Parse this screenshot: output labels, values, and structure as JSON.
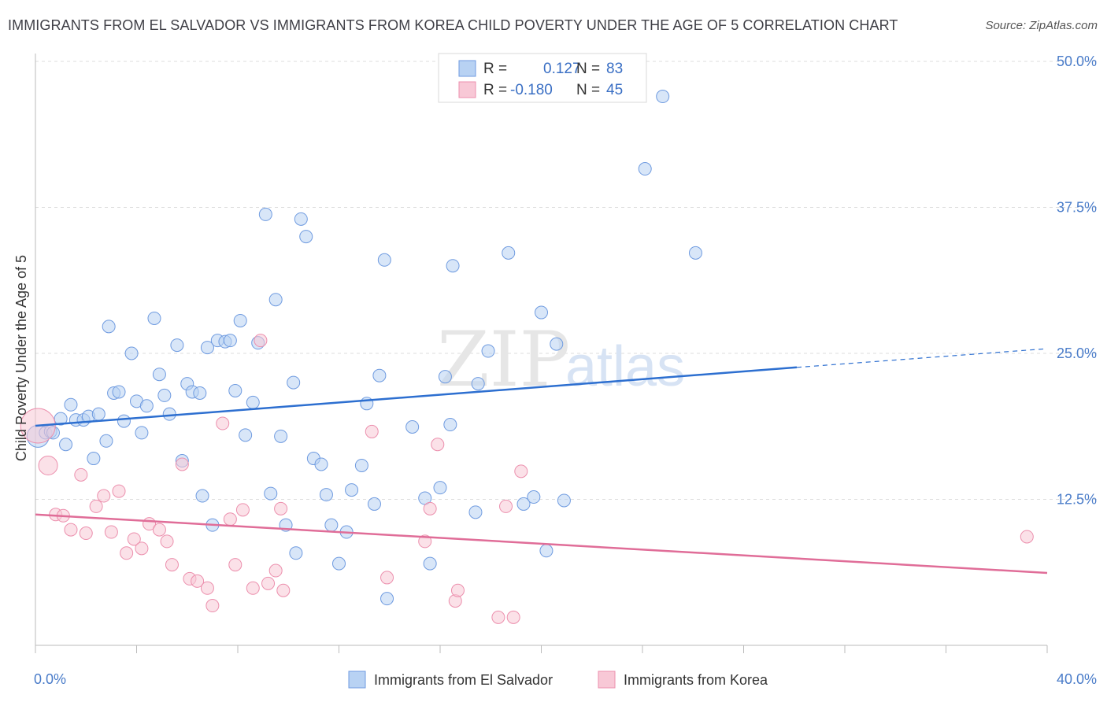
{
  "title": "IMMIGRANTS FROM EL SALVADOR VS IMMIGRANTS FROM KOREA CHILD POVERTY UNDER THE AGE OF 5 CORRELATION CHART",
  "source": "Source: ZipAtlas.com",
  "watermark": {
    "zip": "ZIP",
    "atlas": "atlas"
  },
  "colors": {
    "blue_fill": "#b8d2f3",
    "blue_stroke": "#6f9be0",
    "blue_line": "#2d6fd0",
    "pink_fill": "#f8c8d6",
    "pink_stroke": "#ec8fad",
    "pink_line": "#e06d98",
    "tick_label": "#4a7cc9",
    "grid": "#dddddd"
  },
  "legend": {
    "rows": [
      {
        "r_label": "R =",
        "r_value": "0.127",
        "n_label": "N =",
        "n_value": "83",
        "color": "blue"
      },
      {
        "r_label": "R =",
        "r_value": "-0.180",
        "n_label": "N =",
        "n_value": "45",
        "color": "pink"
      }
    ]
  },
  "chart_data": {
    "type": "scatter",
    "title": "IMMIGRANTS FROM EL SALVADOR VS IMMIGRANTS FROM KOREA CHILD POVERTY UNDER THE AGE OF 5 CORRELATION CHART",
    "xlabel": "",
    "ylabel": "Child Poverty Under the Age of 5",
    "xlim": [
      0,
      40
    ],
    "ylim": [
      0,
      50
    ],
    "x_tick_labels": [
      "0.0%",
      "40.0%"
    ],
    "y_ticks": [
      12.5,
      25.0,
      37.5,
      50.0
    ],
    "y_tick_labels": [
      "12.5%",
      "25.0%",
      "37.5%",
      "50.0%"
    ],
    "grid": true,
    "legend_position": "top-center",
    "series": [
      {
        "name": "Immigrants from El Salvador",
        "color": "blue",
        "r": 0.127,
        "n": 83,
        "trend": {
          "x": [
            0,
            30.1
          ],
          "y": [
            18.8,
            23.8
          ],
          "dashed_to": [
            40,
            25.4
          ]
        },
        "points": [
          [
            0.1,
            17.9,
            14
          ],
          [
            0.4,
            18.2,
            8
          ],
          [
            0.6,
            18.3,
            8
          ],
          [
            0.7,
            18.2,
            8
          ],
          [
            1.0,
            19.4,
            8
          ],
          [
            1.2,
            17.2,
            8
          ],
          [
            1.4,
            20.6,
            8
          ],
          [
            1.6,
            19.3,
            8
          ],
          [
            1.9,
            19.3,
            8
          ],
          [
            2.1,
            19.6,
            8
          ],
          [
            2.3,
            16.0,
            8
          ],
          [
            2.5,
            19.8,
            8
          ],
          [
            2.8,
            17.5,
            8
          ],
          [
            2.9,
            27.3,
            8
          ],
          [
            3.1,
            21.6,
            8
          ],
          [
            3.3,
            21.7,
            8
          ],
          [
            3.5,
            19.2,
            8
          ],
          [
            3.8,
            25.0,
            8
          ],
          [
            4.0,
            20.9,
            8
          ],
          [
            4.2,
            18.2,
            8
          ],
          [
            4.4,
            20.5,
            8
          ],
          [
            4.7,
            28.0,
            8
          ],
          [
            4.9,
            23.2,
            8
          ],
          [
            5.1,
            21.4,
            8
          ],
          [
            5.3,
            19.8,
            8
          ],
          [
            5.6,
            25.7,
            8
          ],
          [
            5.8,
            15.8,
            8
          ],
          [
            6.0,
            22.4,
            8
          ],
          [
            6.2,
            21.7,
            8
          ],
          [
            6.5,
            21.6,
            8
          ],
          [
            6.6,
            12.8,
            8
          ],
          [
            6.8,
            25.5,
            8
          ],
          [
            7.0,
            10.3,
            8
          ],
          [
            7.2,
            26.1,
            8
          ],
          [
            7.5,
            26.0,
            8
          ],
          [
            7.7,
            26.1,
            8
          ],
          [
            7.9,
            21.8,
            8
          ],
          [
            8.1,
            27.8,
            8
          ],
          [
            8.3,
            18.0,
            8
          ],
          [
            8.6,
            20.8,
            8
          ],
          [
            8.8,
            25.9,
            8
          ],
          [
            9.1,
            36.9,
            8
          ],
          [
            9.3,
            13.0,
            8
          ],
          [
            9.5,
            29.6,
            8
          ],
          [
            9.7,
            17.9,
            8
          ],
          [
            9.9,
            10.3,
            8
          ],
          [
            10.2,
            22.5,
            8
          ],
          [
            10.3,
            7.9,
            8
          ],
          [
            10.5,
            36.5,
            8
          ],
          [
            10.7,
            35.0,
            8
          ],
          [
            11.0,
            16.0,
            8
          ],
          [
            11.3,
            15.5,
            8
          ],
          [
            11.5,
            12.9,
            8
          ],
          [
            11.7,
            10.3,
            8
          ],
          [
            12.0,
            7.0,
            8
          ],
          [
            12.3,
            9.7,
            8
          ],
          [
            12.5,
            13.3,
            8
          ],
          [
            12.9,
            15.4,
            8
          ],
          [
            13.1,
            20.7,
            8
          ],
          [
            13.4,
            12.1,
            8
          ],
          [
            13.6,
            23.1,
            8
          ],
          [
            13.8,
            33.0,
            8
          ],
          [
            13.9,
            4.0,
            8
          ],
          [
            14.9,
            18.7,
            8
          ],
          [
            15.4,
            12.6,
            8
          ],
          [
            15.6,
            7.0,
            8
          ],
          [
            16.0,
            13.5,
            8
          ],
          [
            16.2,
            23.0,
            8
          ],
          [
            16.4,
            18.9,
            8
          ],
          [
            16.5,
            32.5,
            8
          ],
          [
            17.4,
            11.4,
            8
          ],
          [
            17.5,
            22.4,
            8
          ],
          [
            17.9,
            25.2,
            8
          ],
          [
            18.7,
            33.6,
            8
          ],
          [
            19.3,
            12.1,
            8
          ],
          [
            19.7,
            12.7,
            8
          ],
          [
            20.0,
            28.5,
            8
          ],
          [
            20.2,
            8.1,
            8
          ],
          [
            20.6,
            25.8,
            8
          ],
          [
            20.9,
            12.4,
            8
          ],
          [
            24.1,
            40.8,
            8
          ],
          [
            24.8,
            47.0,
            8
          ],
          [
            26.1,
            33.6,
            8
          ]
        ]
      },
      {
        "name": "Immigrants from Korea",
        "color": "pink",
        "r": -0.18,
        "n": 45,
        "trend": {
          "x": [
            0,
            40
          ],
          "y": [
            11.2,
            6.2
          ]
        },
        "points": [
          [
            0.1,
            18.8,
            22
          ],
          [
            0.5,
            15.4,
            12
          ],
          [
            0.8,
            11.2,
            8
          ],
          [
            1.1,
            11.1,
            8
          ],
          [
            1.4,
            9.9,
            8
          ],
          [
            1.8,
            14.6,
            8
          ],
          [
            2.0,
            9.6,
            8
          ],
          [
            2.4,
            11.9,
            8
          ],
          [
            2.7,
            12.8,
            8
          ],
          [
            3.0,
            9.7,
            8
          ],
          [
            3.3,
            13.2,
            8
          ],
          [
            3.6,
            7.9,
            8
          ],
          [
            3.9,
            9.1,
            8
          ],
          [
            4.2,
            8.3,
            8
          ],
          [
            4.5,
            10.4,
            8
          ],
          [
            4.9,
            9.9,
            8
          ],
          [
            5.2,
            8.9,
            8
          ],
          [
            5.4,
            6.9,
            8
          ],
          [
            5.8,
            15.5,
            8
          ],
          [
            6.1,
            5.7,
            8
          ],
          [
            6.4,
            5.5,
            8
          ],
          [
            6.8,
            4.9,
            8
          ],
          [
            7.0,
            3.4,
            8
          ],
          [
            7.4,
            19.0,
            8
          ],
          [
            7.7,
            10.8,
            8
          ],
          [
            7.9,
            6.9,
            8
          ],
          [
            8.2,
            11.6,
            8
          ],
          [
            8.6,
            4.9,
            8
          ],
          [
            8.9,
            26.1,
            8
          ],
          [
            9.2,
            5.3,
            8
          ],
          [
            9.5,
            6.4,
            8
          ],
          [
            9.7,
            11.7,
            8
          ],
          [
            9.8,
            4.7,
            8
          ],
          [
            13.3,
            18.3,
            8
          ],
          [
            13.9,
            5.8,
            8
          ],
          [
            15.4,
            8.9,
            8
          ],
          [
            15.6,
            11.7,
            8
          ],
          [
            15.9,
            17.2,
            8
          ],
          [
            16.6,
            3.8,
            8
          ],
          [
            16.7,
            4.7,
            8
          ],
          [
            18.3,
            2.4,
            8
          ],
          [
            18.6,
            11.9,
            8
          ],
          [
            18.9,
            2.4,
            8
          ],
          [
            19.2,
            14.9,
            8
          ],
          [
            39.2,
            9.3,
            8
          ]
        ]
      }
    ]
  }
}
